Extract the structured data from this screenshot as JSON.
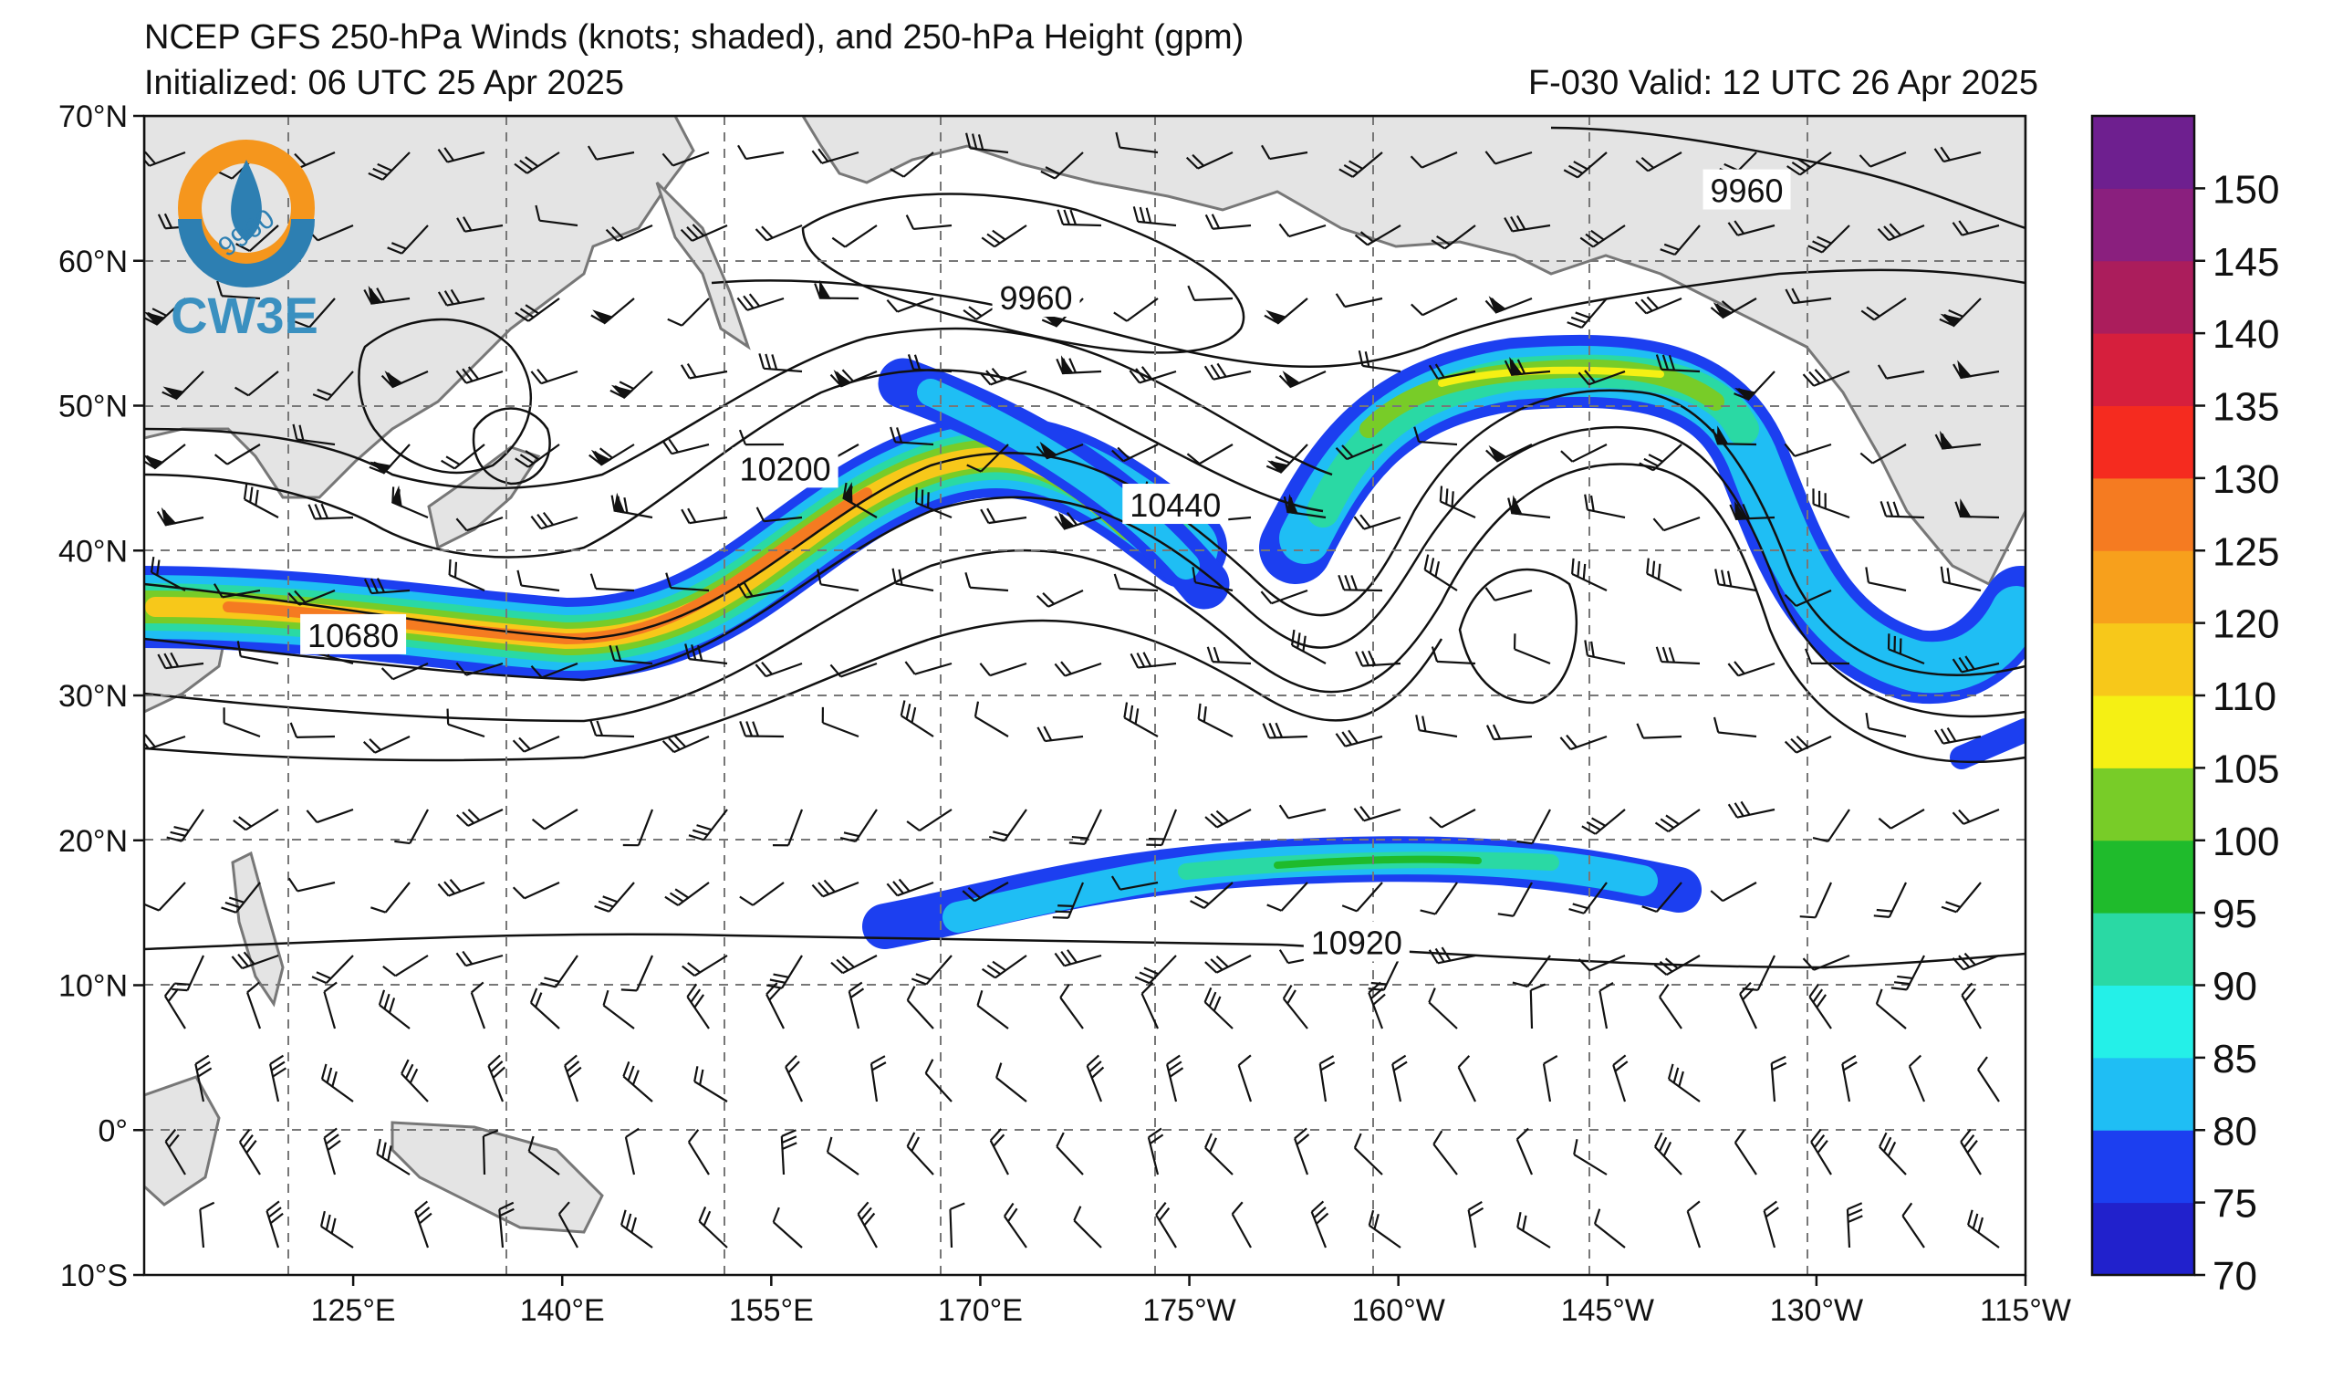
{
  "header": {
    "title": "NCEP GFS 250-hPa Winds (knots; shaded), and 250-hPa Height (gpm)",
    "initialized": "Initialized: 06 UTC 25 Apr 2025",
    "valid": "F-030  Valid: 12 UTC 26 Apr 2025"
  },
  "logo": {
    "text": "CW3E",
    "inner_label": "9960"
  },
  "axes": {
    "lat_labels": [
      "70°N",
      "60°N",
      "50°N",
      "40°N",
      "30°N",
      "20°N",
      "10°N",
      "0°",
      "10°S"
    ],
    "lon_labels": [
      "125°E",
      "140°E",
      "155°E",
      "170°E",
      "175°W",
      "160°W",
      "145°W",
      "130°W",
      "115°W"
    ],
    "lat_range": [
      -10,
      70
    ],
    "lon_range_deg_east": [
      110,
      245
    ],
    "grid": "dashed"
  },
  "contour_labels": [
    {
      "text": "9960",
      "lon": 174,
      "lat": 57.4
    },
    {
      "text": "9960",
      "lon": 225,
      "lat": 64.8
    },
    {
      "text": "10200",
      "lon": 156,
      "lat": 45.6
    },
    {
      "text": "10440",
      "lon": 184,
      "lat": 43.1
    },
    {
      "text": "10680",
      "lon": 125,
      "lat": 34.1
    },
    {
      "text": "10920",
      "lon": 197,
      "lat": 12.9
    }
  ],
  "colorbar": {
    "colors": [
      "#2121cc",
      "#1c3ff0",
      "#1fbef4",
      "#24f0e8",
      "#2ad9a4",
      "#1fbb2c",
      "#78cc28",
      "#f5f014",
      "#f7c81a",
      "#f7a01c",
      "#f57b21",
      "#f52b1f",
      "#d61f3d",
      "#ab1d5c",
      "#8a1f7e",
      "#6e1f8f"
    ],
    "tick_labels": [
      "70",
      "75",
      "80",
      "85",
      "90",
      "95",
      "100",
      "105",
      "110",
      "120",
      "125",
      "130",
      "135",
      "140",
      "145",
      "150"
    ]
  }
}
